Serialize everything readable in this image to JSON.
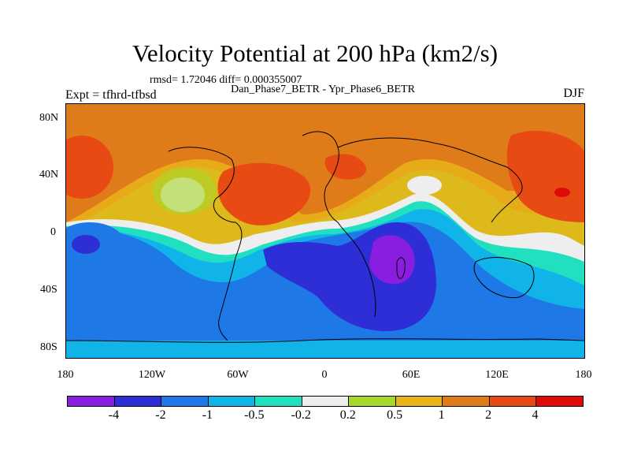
{
  "title": "Velocity Potential at 200 hPa (km2/s)",
  "stats": "rmsd= 1.72046  diff= 0.000355007",
  "subtitle": "Dan_Phase7_BETR - Ypr_Phase6_BETR",
  "expt": "Expt = tfhrd-tfbsd",
  "season": "DJF",
  "lat_labels": [
    "80N",
    "40N",
    "0",
    "40S",
    "80S"
  ],
  "lon_labels": [
    "180",
    "120W",
    "60W",
    "0",
    "60E",
    "120E",
    "180"
  ],
  "colorbar": {
    "colors": [
      "#8a1ee0",
      "#2e2ed6",
      "#1e78e6",
      "#10b4e8",
      "#20e0c0",
      "#eeeeee",
      "#a6d82a",
      "#e8b41a",
      "#e07b19",
      "#e84a14",
      "#e00a0a"
    ],
    "labels": [
      "-4",
      "-2",
      "-1",
      "-0.5",
      "-0.2",
      "0.2",
      "0.5",
      "1",
      "2",
      "4"
    ]
  },
  "chart_data": {
    "type": "map",
    "variable": "Velocity Potential at 200 hPa",
    "units": "km2/s",
    "lon_range": [
      -180,
      180
    ],
    "lat_range": [
      -90,
      90
    ],
    "contour_levels": [
      -4,
      -2,
      -1,
      -0.5,
      -0.2,
      0.2,
      0.5,
      1,
      2,
      4
    ],
    "features": [
      {
        "name": "min over southern Africa / Indian Ocean",
        "value": "< -4"
      },
      {
        "name": "max over western Pacific",
        "value": "> 4"
      }
    ]
  }
}
